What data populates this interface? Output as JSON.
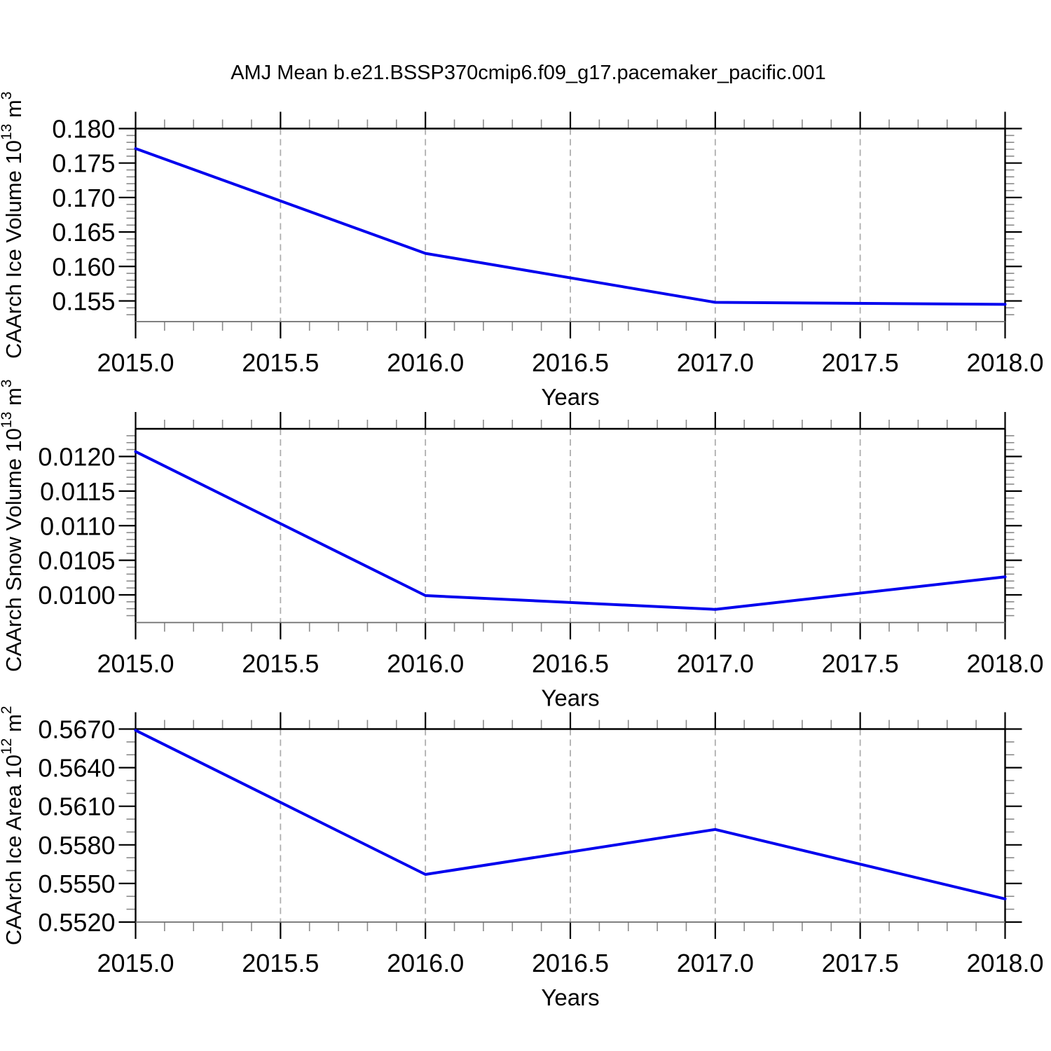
{
  "title": "AMJ Mean b.e21.BSSP370cmip6.f09_g17.pacemaker_pacific.001",
  "colors": {
    "line": "#0000ee",
    "axis": "#000000",
    "bottom_axis": "#6e6e6e",
    "minor_tick": "#8a8a8a",
    "grid": "#aeaeae",
    "text": "#000000",
    "background": "#ffffff"
  },
  "chart_data": [
    {
      "type": "line",
      "ylabel_parts": [
        {
          "text": "CAArch Ice Volume 10"
        },
        {
          "text": "13",
          "sup": true
        },
        {
          "text": " m"
        },
        {
          "text": "3",
          "sup": true
        }
      ],
      "xlabel": "Years",
      "x": [
        2015,
        2016,
        2017,
        2018
      ],
      "y": [
        0.1771,
        0.1619,
        0.1548,
        0.1545
      ],
      "xlim": [
        2015,
        2018
      ],
      "ylim": [
        0.152,
        0.18
      ],
      "x_major_ticks": [
        2015,
        2015.5,
        2016,
        2016.5,
        2017,
        2017.5,
        2018
      ],
      "x_tick_labels": [
        "2015.0",
        "2015.5",
        "2016.0",
        "2016.5",
        "2017.0",
        "2017.5",
        "2018.0"
      ],
      "x_minor_step": 0.1,
      "y_major_ticks": [
        0.155,
        0.16,
        0.165,
        0.17,
        0.175,
        0.18
      ],
      "y_tick_labels": [
        "0.155",
        "0.160",
        "0.165",
        "0.170",
        "0.175",
        "0.180"
      ],
      "y_minor_step": 0.001,
      "grid_x": [
        2015.5,
        2016,
        2016.5,
        2017,
        2017.5
      ]
    },
    {
      "type": "line",
      "ylabel_parts": [
        {
          "text": "CAArch Snow Volume 10"
        },
        {
          "text": "13",
          "sup": true
        },
        {
          "text": " m"
        },
        {
          "text": "3",
          "sup": true
        }
      ],
      "xlabel": "Years",
      "x": [
        2015,
        2016,
        2017,
        2018
      ],
      "y": [
        0.01207,
        0.00999,
        0.00979,
        0.01026
      ],
      "xlim": [
        2015,
        2018
      ],
      "ylim": [
        0.0096,
        0.0124
      ],
      "x_major_ticks": [
        2015,
        2015.5,
        2016,
        2016.5,
        2017,
        2017.5,
        2018
      ],
      "x_tick_labels": [
        "2015.0",
        "2015.5",
        "2016.0",
        "2016.5",
        "2017.0",
        "2017.5",
        "2018.0"
      ],
      "x_minor_step": 0.1,
      "y_major_ticks": [
        0.01,
        0.0105,
        0.011,
        0.0115,
        0.012
      ],
      "y_tick_labels": [
        "0.0100",
        "0.0105",
        "0.0110",
        "0.0115",
        "0.0120"
      ],
      "y_minor_step": 0.0001,
      "grid_x": [
        2015.5,
        2016,
        2016.5,
        2017,
        2017.5
      ]
    },
    {
      "type": "line",
      "ylabel_parts": [
        {
          "text": "CAArch Ice Area 10"
        },
        {
          "text": "12",
          "sup": true
        },
        {
          "text": " m"
        },
        {
          "text": "2",
          "sup": true
        }
      ],
      "xlabel": "Years",
      "x": [
        2015,
        2016,
        2017,
        2018
      ],
      "y": [
        0.5669,
        0.5557,
        0.5592,
        0.5538
      ],
      "xlim": [
        2015,
        2018
      ],
      "ylim": [
        0.552,
        0.567
      ],
      "x_major_ticks": [
        2015,
        2015.5,
        2016,
        2016.5,
        2017,
        2017.5,
        2018
      ],
      "x_tick_labels": [
        "2015.0",
        "2015.5",
        "2016.0",
        "2016.5",
        "2017.0",
        "2017.5",
        "2018.0"
      ],
      "x_minor_step": 0.1,
      "y_major_ticks": [
        0.552,
        0.555,
        0.558,
        0.561,
        0.564,
        0.567
      ],
      "y_tick_labels": [
        "0.5520",
        "0.5550",
        "0.5580",
        "0.5610",
        "0.5640",
        "0.5670"
      ],
      "y_minor_step": 0.001,
      "grid_x": [
        2015.5,
        2016,
        2016.5,
        2017,
        2017.5
      ]
    }
  ]
}
